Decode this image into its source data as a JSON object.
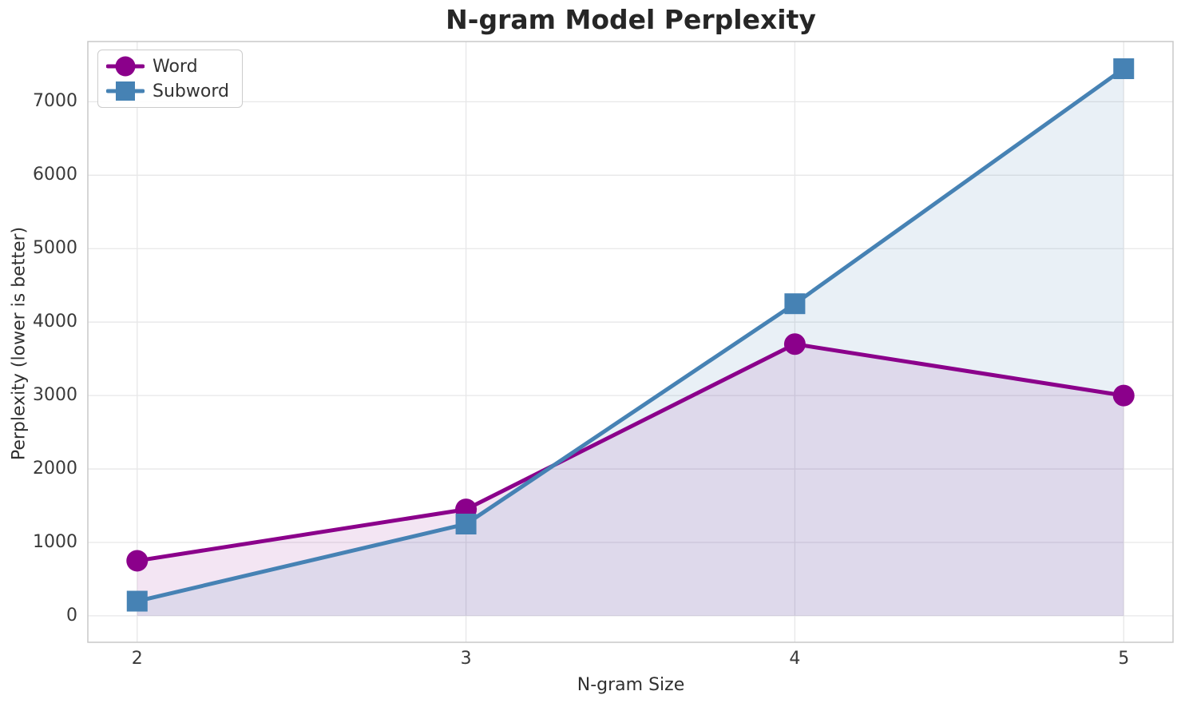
{
  "figure": {
    "background": "#ffffff"
  },
  "chart_data": {
    "type": "line",
    "title": "N-gram Model Perplexity",
    "xlabel": "N-gram Size",
    "ylabel": "Perplexity (lower is better)",
    "x": [
      2,
      3,
      4,
      5
    ],
    "x_tick_labels": [
      "2",
      "3",
      "4",
      "5"
    ],
    "y_ticks": [
      0,
      1000,
      2000,
      3000,
      4000,
      5000,
      6000,
      7000
    ],
    "xlim": [
      1.85,
      5.15
    ],
    "ylim": [
      -360,
      7820
    ],
    "grid": true,
    "legend_position": "upper-left",
    "series": [
      {
        "name": "Word",
        "color": "#8B008B",
        "marker": "circle",
        "fill_to_zero": true,
        "fill_alpha": 0.1,
        "values": [
          750,
          1450,
          3700,
          3000
        ]
      },
      {
        "name": "Subword",
        "color": "#4682B4",
        "marker": "square",
        "fill_to_zero": true,
        "fill_alpha": 0.12,
        "values": [
          200,
          1250,
          4250,
          7450
        ]
      }
    ],
    "styles": {
      "grid_color": "#e7e7e8",
      "spine_color": "#c9c9c9",
      "text_color": "#303030",
      "line_width": 5
    }
  }
}
